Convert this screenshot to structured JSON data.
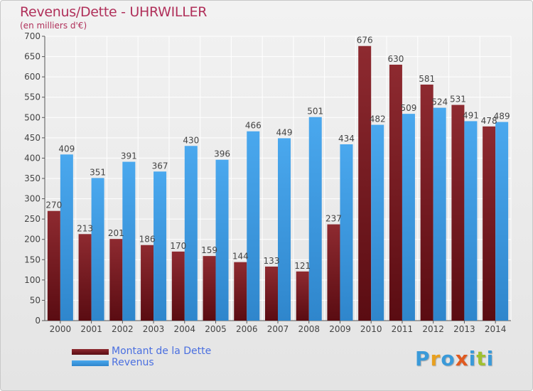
{
  "title": "Revenus/Dette - UHRWILLER",
  "subtitle": "(en milliers d'€)",
  "brand": {
    "text": "Proxiti",
    "letter_colors": [
      "#3a9ad9",
      "#e8a020",
      "#3a9ad9",
      "#e05a20",
      "#3a9ad9",
      "#a0c030",
      "#3a9ad9"
    ]
  },
  "legend": {
    "position": "bottom-left",
    "items": [
      {
        "label": "Montant de la Dette",
        "color": "#7a1c24"
      },
      {
        "label": "Revenus",
        "color": "#3f9de4"
      }
    ]
  },
  "chart_data": {
    "type": "bar",
    "categories": [
      "2000",
      "2001",
      "2002",
      "2003",
      "2004",
      "2005",
      "2006",
      "2007",
      "2008",
      "2009",
      "2010",
      "2011",
      "2012",
      "2013",
      "2014"
    ],
    "series": [
      {
        "name": "Montant de la Dette",
        "color": "#7a1c24",
        "values": [
          270,
          213,
          201,
          186,
          170,
          159,
          144,
          133,
          121,
          237,
          676,
          630,
          581,
          531,
          478
        ]
      },
      {
        "name": "Revenus",
        "color": "#3f9de4",
        "values": [
          409,
          351,
          391,
          367,
          430,
          396,
          466,
          449,
          501,
          434,
          482,
          509,
          524,
          491,
          489
        ]
      }
    ],
    "data_labels": [
      [
        "270",
        "213",
        "201",
        "186",
        "170",
        "159",
        "144",
        "133",
        "121",
        "237",
        "676",
        "630",
        "581",
        "531",
        "478"
      ],
      [
        "409",
        "351",
        "391",
        "367",
        "430",
        "396",
        "466",
        "449",
        "501",
        "434",
        "482",
        "509",
        "524",
        "491",
        "489"
      ]
    ],
    "ylim": [
      0,
      700
    ],
    "yticks": [
      "0",
      "50",
      "100",
      "150",
      "200",
      "250",
      "300",
      "350",
      "400",
      "450",
      "500",
      "550",
      "600",
      "650",
      "700"
    ],
    "grid": true
  }
}
